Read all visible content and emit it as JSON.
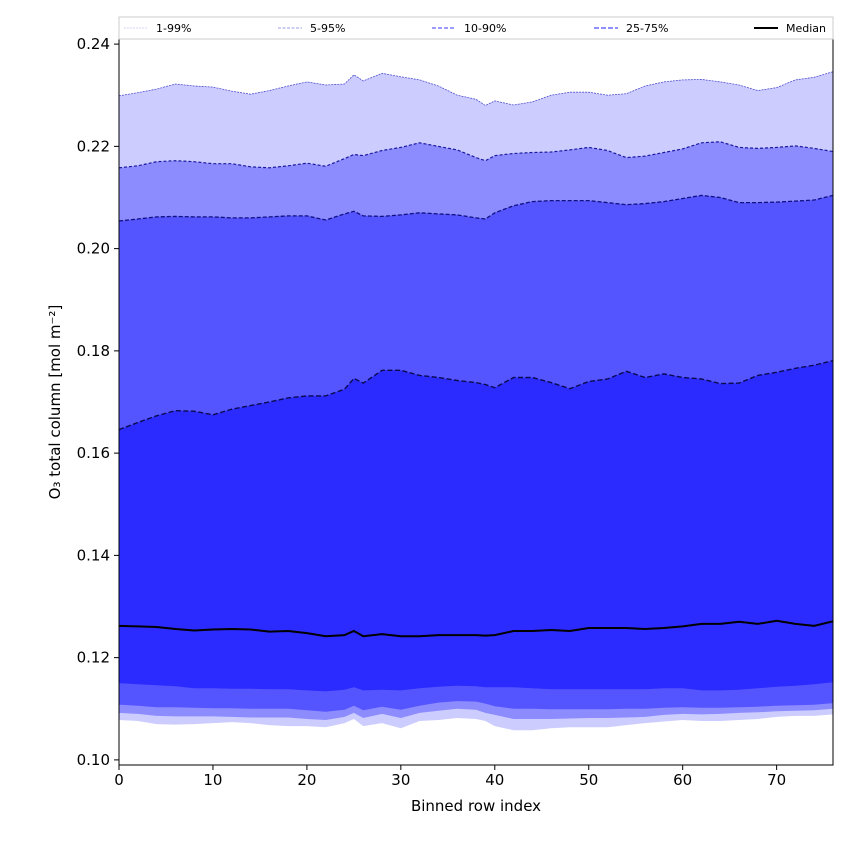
{
  "chart_data": {
    "type": "area",
    "title": "",
    "xlabel": "Binned row index",
    "ylabel": "O₃ total column [mol m⁻²]",
    "xlim": [
      0,
      76
    ],
    "ylim": [
      0.099,
      0.241
    ],
    "xticks": [
      0,
      10,
      20,
      30,
      40,
      50,
      60,
      70
    ],
    "xtick_labels": [
      "0",
      "10",
      "20",
      "30",
      "40",
      "50",
      "60",
      "70"
    ],
    "yticks": [
      0.1,
      0.12,
      0.14,
      0.16,
      0.18,
      0.2,
      0.22,
      0.24
    ],
    "ytick_labels": [
      "0.10",
      "0.12",
      "0.14",
      "0.16",
      "0.18",
      "0.20",
      "0.22",
      "0.24"
    ],
    "grid": false,
    "legend_position": "top",
    "legend": [
      {
        "label": "1-99%",
        "color": "#ccccff",
        "style": "dashed-thin"
      },
      {
        "label": "5-95%",
        "color": "#8c8cff",
        "style": "dashed-thin"
      },
      {
        "label": "10-90%",
        "color": "#5555ff",
        "style": "dashed"
      },
      {
        "label": "25-75%",
        "color": "#2b2bff",
        "style": "dashed"
      },
      {
        "label": "Median",
        "color": "#000000",
        "style": "solid"
      }
    ],
    "x": [
      0,
      2,
      4,
      6,
      8,
      10,
      12,
      14,
      16,
      18,
      20,
      22,
      24,
      25,
      26,
      28,
      30,
      32,
      34,
      36,
      38,
      39,
      40,
      42,
      44,
      46,
      48,
      50,
      52,
      54,
      56,
      58,
      60,
      62,
      64,
      66,
      68,
      70,
      72,
      74,
      76
    ],
    "series": [
      {
        "name": "p99",
        "band": "1-99%",
        "color": "#ccccff",
        "values": [
          0.2299,
          0.2305,
          0.2312,
          0.2322,
          0.2318,
          0.2316,
          0.2308,
          0.2302,
          0.2309,
          0.2318,
          0.2326,
          0.232,
          0.2322,
          0.234,
          0.2328,
          0.2343,
          0.2336,
          0.233,
          0.2318,
          0.23,
          0.2292,
          0.228,
          0.2289,
          0.2281,
          0.2287,
          0.23,
          0.2306,
          0.2306,
          0.23,
          0.2303,
          0.2318,
          0.2326,
          0.233,
          0.2331,
          0.2326,
          0.232,
          0.2309,
          0.2315,
          0.233,
          0.2335,
          0.2346
        ]
      },
      {
        "name": "p95",
        "band": "5-95%",
        "color": "#8c8cff",
        "values": [
          0.2158,
          0.2162,
          0.217,
          0.2172,
          0.217,
          0.2166,
          0.2166,
          0.216,
          0.2158,
          0.2162,
          0.2167,
          0.2161,
          0.2176,
          0.2184,
          0.2182,
          0.2192,
          0.2198,
          0.2207,
          0.22,
          0.2193,
          0.2178,
          0.2172,
          0.2182,
          0.2186,
          0.2188,
          0.2189,
          0.2193,
          0.2198,
          0.2192,
          0.2178,
          0.2181,
          0.2188,
          0.2195,
          0.2207,
          0.2209,
          0.2198,
          0.2196,
          0.2198,
          0.2201,
          0.2196,
          0.219
        ]
      },
      {
        "name": "p90",
        "band": "10-90%",
        "color": "#5555ff",
        "values": [
          0.2054,
          0.2058,
          0.2062,
          0.2063,
          0.2062,
          0.2062,
          0.206,
          0.206,
          0.2062,
          0.2064,
          0.2064,
          0.2056,
          0.2068,
          0.2073,
          0.2064,
          0.2063,
          0.2066,
          0.207,
          0.2068,
          0.2066,
          0.206,
          0.2058,
          0.207,
          0.2084,
          0.2092,
          0.2094,
          0.2094,
          0.2094,
          0.209,
          0.2086,
          0.2088,
          0.2092,
          0.2098,
          0.2104,
          0.21,
          0.209,
          0.209,
          0.2091,
          0.2093,
          0.2095,
          0.2104
        ]
      },
      {
        "name": "p75",
        "band": "25-75%",
        "color": "#2b2bff",
        "values": [
          0.1646,
          0.166,
          0.1673,
          0.1683,
          0.1682,
          0.1675,
          0.1686,
          0.1693,
          0.17,
          0.1708,
          0.1712,
          0.1712,
          0.1725,
          0.1746,
          0.1737,
          0.1762,
          0.1762,
          0.1752,
          0.1748,
          0.1742,
          0.1738,
          0.1734,
          0.1728,
          0.1748,
          0.1748,
          0.1738,
          0.1726,
          0.174,
          0.1745,
          0.176,
          0.1748,
          0.1755,
          0.1748,
          0.1745,
          0.1736,
          0.1737,
          0.1752,
          0.1758,
          0.1766,
          0.1772,
          0.1781
        ]
      },
      {
        "name": "median",
        "band": "Median",
        "color": "#000000",
        "values": [
          0.1262,
          0.1261,
          0.126,
          0.1256,
          0.1253,
          0.1255,
          0.1256,
          0.1255,
          0.1251,
          0.1252,
          0.1248,
          0.1242,
          0.1244,
          0.1252,
          0.1242,
          0.1246,
          0.1242,
          0.1242,
          0.1244,
          0.1244,
          0.1244,
          0.1243,
          0.1244,
          0.1252,
          0.1252,
          0.1254,
          0.1252,
          0.1258,
          0.1258,
          0.1258,
          0.1256,
          0.1258,
          0.1261,
          0.1266,
          0.1266,
          0.127,
          0.1266,
          0.1272,
          0.1266,
          0.1262,
          0.1271
        ]
      },
      {
        "name": "p25",
        "band": "25-75%",
        "color": "#2b2bff",
        "values": [
          0.115,
          0.1148,
          0.1146,
          0.1144,
          0.114,
          0.114,
          0.1139,
          0.1139,
          0.1138,
          0.1138,
          0.1136,
          0.1134,
          0.1137,
          0.1142,
          0.1136,
          0.1137,
          0.1136,
          0.114,
          0.1143,
          0.1145,
          0.1144,
          0.1142,
          0.1142,
          0.1142,
          0.114,
          0.1138,
          0.1138,
          0.1138,
          0.1138,
          0.1138,
          0.1138,
          0.114,
          0.114,
          0.1136,
          0.1136,
          0.1137,
          0.114,
          0.1143,
          0.1145,
          0.1148,
          0.1152
        ]
      },
      {
        "name": "p10",
        "band": "10-90%",
        "color": "#5555ff",
        "values": [
          0.1108,
          0.1106,
          0.1103,
          0.1103,
          0.1102,
          0.1101,
          0.1101,
          0.11,
          0.11,
          0.11,
          0.1097,
          0.1094,
          0.1098,
          0.1106,
          0.1097,
          0.1104,
          0.1098,
          0.1106,
          0.1112,
          0.1115,
          0.1114,
          0.111,
          0.1105,
          0.11,
          0.11,
          0.1099,
          0.1099,
          0.1099,
          0.1099,
          0.11,
          0.11,
          0.1102,
          0.1103,
          0.1102,
          0.1102,
          0.1103,
          0.1104,
          0.1106,
          0.1107,
          0.1108,
          0.1111
        ]
      },
      {
        "name": "p5",
        "band": "5-95%",
        "color": "#8c8cff",
        "values": [
          0.1092,
          0.109,
          0.1086,
          0.1085,
          0.1085,
          0.1085,
          0.1084,
          0.1083,
          0.1083,
          0.1083,
          0.108,
          0.1078,
          0.1084,
          0.1092,
          0.1082,
          0.109,
          0.1082,
          0.1092,
          0.1096,
          0.11,
          0.1098,
          0.1092,
          0.1088,
          0.108,
          0.108,
          0.108,
          0.1081,
          0.1082,
          0.1082,
          0.1083,
          0.1084,
          0.1088,
          0.109,
          0.1089,
          0.109,
          0.1092,
          0.1093,
          0.1095,
          0.1096,
          0.1097,
          0.11
        ]
      },
      {
        "name": "p1",
        "band": "1-99%",
        "color": "#ccccff",
        "values": [
          0.1078,
          0.1076,
          0.107,
          0.1069,
          0.107,
          0.1072,
          0.1074,
          0.1072,
          0.1068,
          0.1066,
          0.1066,
          0.1064,
          0.1072,
          0.108,
          0.1066,
          0.1072,
          0.1062,
          0.1076,
          0.1078,
          0.1082,
          0.108,
          0.1076,
          0.1066,
          0.1058,
          0.1058,
          0.1062,
          0.1064,
          0.1064,
          0.1064,
          0.1068,
          0.1072,
          0.1075,
          0.1078,
          0.1076,
          0.1076,
          0.1078,
          0.108,
          0.1084,
          0.1086,
          0.1086,
          0.1089
        ]
      }
    ]
  }
}
